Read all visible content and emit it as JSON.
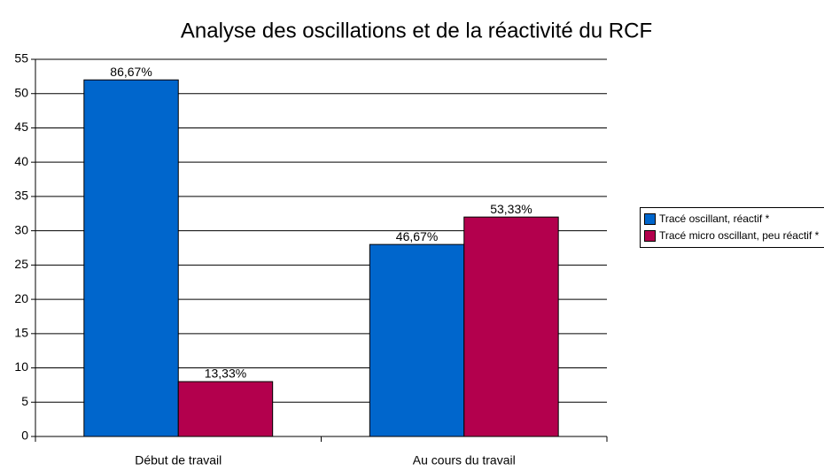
{
  "chart_data": {
    "type": "bar",
    "title": "Analyse des oscillations et de la réactivité du RCF",
    "categories": [
      "Début de travail",
      "Au cours du travail"
    ],
    "series": [
      {
        "name": "Tracé oscillant, réactif *",
        "color": "#0066cc",
        "values": [
          52,
          28
        ],
        "value_labels": [
          "86,67%",
          "46,67%"
        ]
      },
      {
        "name": "Tracé micro oscillant, peu réactif *",
        "color": "#b3004d",
        "values": [
          8,
          32
        ],
        "value_labels": [
          "13,33%",
          "53,33%"
        ]
      }
    ],
    "ylim": [
      0,
      55
    ],
    "yticks": [
      0,
      5,
      10,
      15,
      20,
      25,
      30,
      35,
      40,
      45,
      50,
      55
    ],
    "grid": true,
    "legend": "right"
  }
}
